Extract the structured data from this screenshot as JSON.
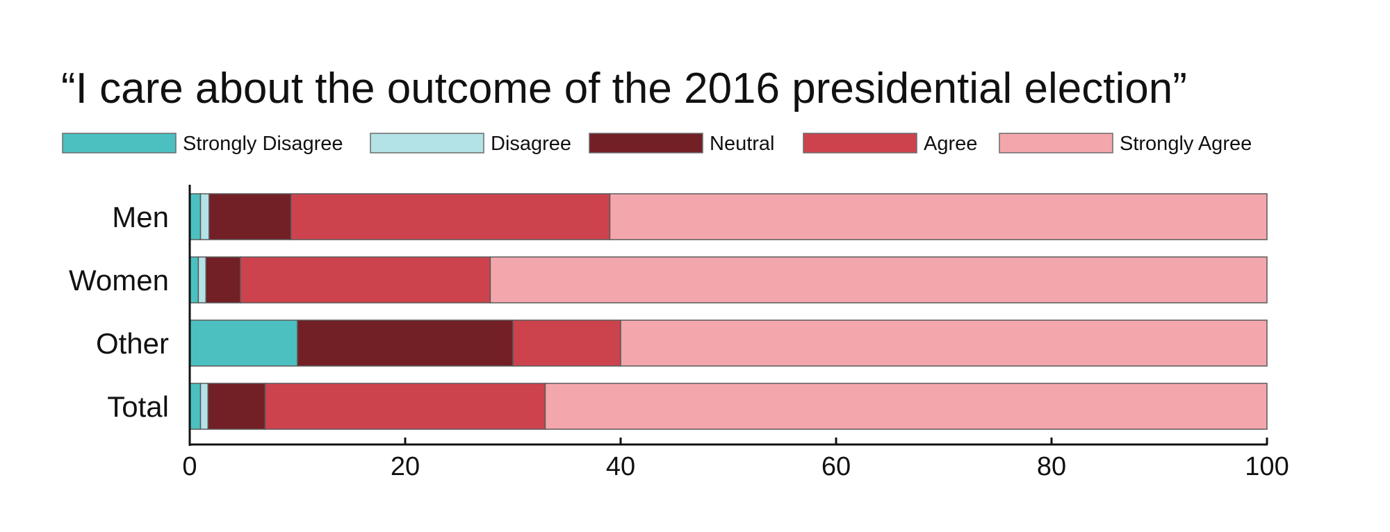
{
  "chart_data": {
    "type": "bar",
    "orientation": "horizontal",
    "stacked": true,
    "title": "“I care about the outcome of the 2016 presidential election”",
    "xlabel": "",
    "ylabel": "",
    "xlim": [
      0,
      100
    ],
    "x_ticks": [
      0,
      20,
      40,
      60,
      80,
      100
    ],
    "categories": [
      "Men",
      "Women",
      "Other",
      "Total"
    ],
    "legend_position": "top",
    "grid": false,
    "series": [
      {
        "name": "Strongly Disagree",
        "color": "#4cc0c0",
        "values": [
          1,
          0.8,
          10,
          1
        ]
      },
      {
        "name": "Disagree",
        "color": "#b3e2e7",
        "values": [
          0.8,
          0.7,
          0,
          0.7
        ]
      },
      {
        "name": "Neutral",
        "color": "#731f26",
        "values": [
          7.6,
          3.2,
          20,
          5.3
        ]
      },
      {
        "name": "Agree",
        "color": "#cd434d",
        "values": [
          29.6,
          23.2,
          10,
          26
        ]
      },
      {
        "name": "Strongly Agree",
        "color": "#f3a7ac",
        "values": [
          61,
          72.1,
          60,
          67
        ]
      }
    ]
  }
}
